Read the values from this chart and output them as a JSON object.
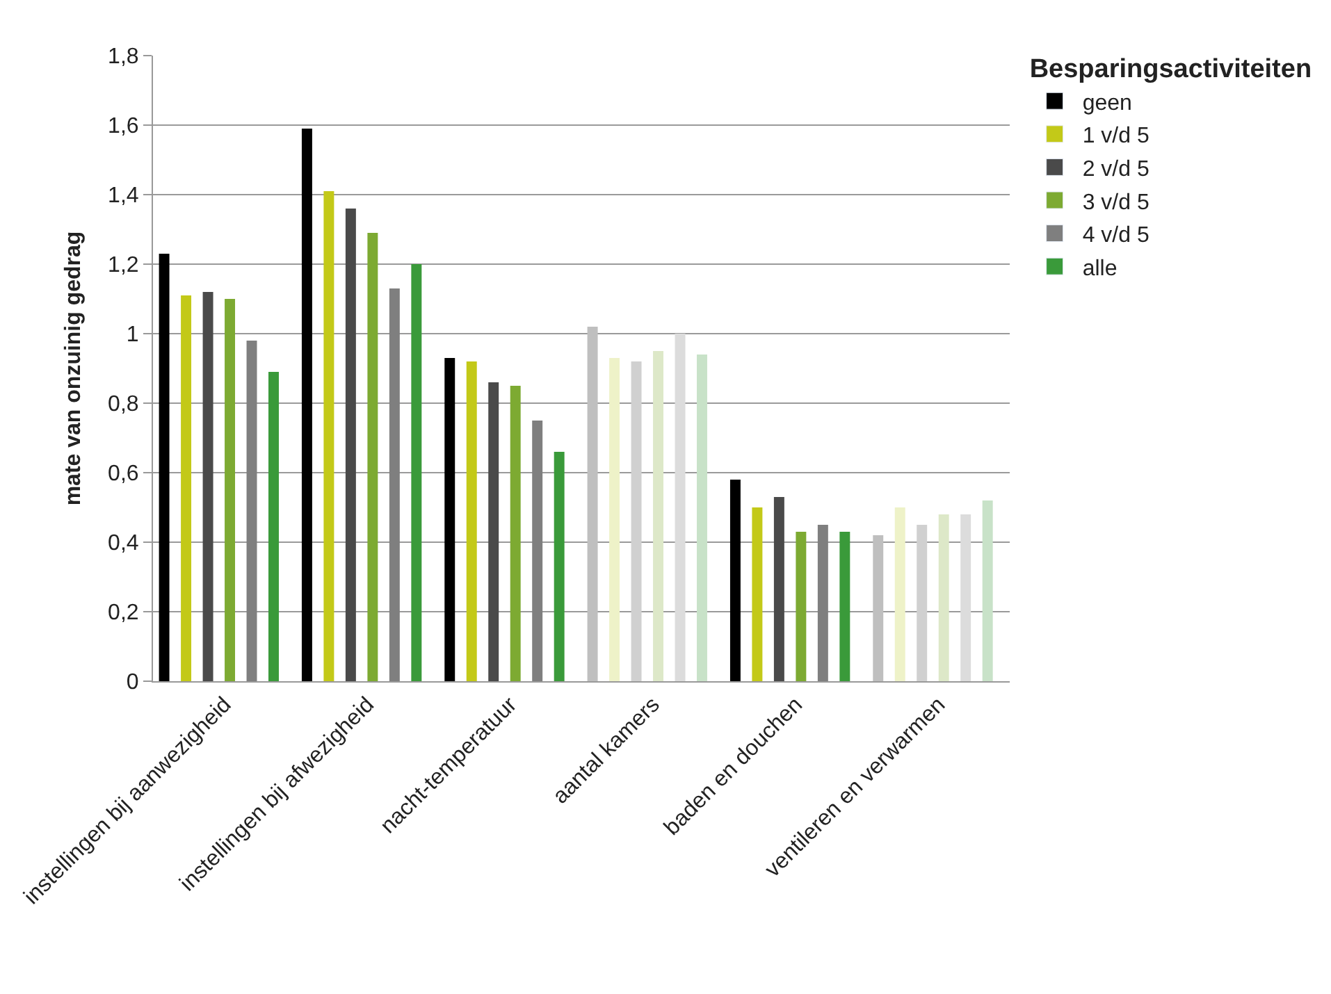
{
  "chart_data": {
    "type": "bar",
    "ylabel": "mate van onzuinig gedrag",
    "legend_title": "Besparingsactiviteiten",
    "categories": [
      "instellingen bij aanwezigheid",
      "instellingen bij afwezigheid",
      "nacht-temperatuur",
      "aantal kamers",
      "baden en douchen",
      "ventileren en verwarmen"
    ],
    "series": [
      {
        "name": "geen",
        "color": "#000000",
        "colors": [
          "#000000",
          "#000000",
          "#000000",
          "#bfbfbf",
          "#000000",
          "#bfbfbf"
        ],
        "values": [
          1.23,
          1.59,
          0.93,
          1.02,
          0.58,
          0.42
        ]
      },
      {
        "name": "1 v/d 5",
        "color": "#c3c918",
        "colors": [
          "#c3c918",
          "#c3c918",
          "#c3c918",
          "#eef2c8",
          "#c3c918",
          "#eef2c8"
        ],
        "values": [
          1.11,
          1.41,
          0.92,
          0.93,
          0.5,
          0.5
        ]
      },
      {
        "name": "2 v/d 5",
        "color": "#4a4a4a",
        "colors": [
          "#4a4a4a",
          "#4a4a4a",
          "#4a4a4a",
          "#d0d0d0",
          "#4a4a4a",
          "#d0d0d0"
        ],
        "values": [
          1.12,
          1.36,
          0.86,
          0.92,
          0.53,
          0.45
        ]
      },
      {
        "name": "3 v/d 5",
        "color": "#7daa32",
        "colors": [
          "#7daa32",
          "#7daa32",
          "#7daa32",
          "#dde8c8",
          "#7daa32",
          "#dde8c8"
        ],
        "values": [
          1.1,
          1.29,
          0.85,
          0.95,
          0.43,
          0.48
        ]
      },
      {
        "name": "4 v/d 5",
        "color": "#7f7f7f",
        "colors": [
          "#7f7f7f",
          "#7f7f7f",
          "#7f7f7f",
          "#dcdcdc",
          "#7f7f7f",
          "#dcdcdc"
        ],
        "values": [
          0.98,
          1.13,
          0.75,
          1.0,
          0.45,
          0.48
        ]
      },
      {
        "name": "alle",
        "color": "#3a9a3a",
        "colors": [
          "#3a9a3a",
          "#3a9a3a",
          "#3a9a3a",
          "#c8e2c8",
          "#3a9a3a",
          "#c8e2c8"
        ],
        "values": [
          0.89,
          1.2,
          0.66,
          0.94,
          0.43,
          0.52
        ]
      }
    ],
    "ylim": [
      0,
      1.8
    ],
    "yticks": [
      0,
      {
        "value": 0.2,
        "label": "0,2"
      },
      {
        "value": 0.4,
        "label": "0,4"
      },
      {
        "value": 0.6,
        "label": "0,6"
      },
      {
        "value": 0.8,
        "label": "0,8"
      },
      1,
      {
        "value": 1.2,
        "label": "1,2"
      },
      {
        "value": 1.4,
        "label": "1,4"
      },
      {
        "value": 1.6,
        "label": "1,6"
      },
      {
        "value": 1.8,
        "label": "1,8"
      }
    ],
    "grid": "y",
    "legend": "top right"
  }
}
